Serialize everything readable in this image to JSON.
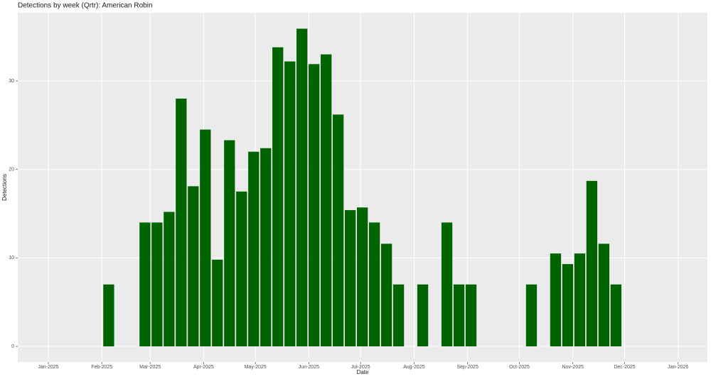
{
  "chart_data": {
    "type": "bar",
    "title": "Detections by week (Qrtr): American Robin",
    "x_label": "Date",
    "y_label": "Detections",
    "x": [
      35,
      56,
      63,
      70,
      77,
      84,
      91,
      98,
      105,
      112,
      119,
      126,
      133,
      140,
      147,
      154,
      161,
      168,
      175,
      182,
      189,
      196,
      203,
      217,
      231,
      238,
      245,
      280,
      294,
      301,
      308,
      315,
      322,
      329
    ],
    "values": [
      7,
      14,
      14,
      15.2,
      28,
      18.1,
      24.5,
      9.8,
      23.3,
      17.5,
      22,
      22.4,
      33.8,
      32.2,
      35.9,
      31.9,
      33,
      26.2,
      15.4,
      15.7,
      14,
      11.6,
      7,
      7,
      14,
      7,
      7,
      7,
      10.5,
      9.3,
      10.5,
      18.7,
      11.6,
      7
    ],
    "color": "#006400",
    "xlim": [
      -17.7,
      382
    ],
    "xticks": [
      {
        "value": 0,
        "label": "Jan-2025"
      },
      {
        "value": 31,
        "label": "Feb-2025"
      },
      {
        "value": 59,
        "label": "Mar-2025"
      },
      {
        "value": 90,
        "label": "Apr-2025"
      },
      {
        "value": 120,
        "label": "May-2025"
      },
      {
        "value": 151,
        "label": "Jun-2025"
      },
      {
        "value": 181,
        "label": "Jul-2025"
      },
      {
        "value": 212,
        "label": "Aug-2025"
      },
      {
        "value": 243,
        "label": "Sep-2025"
      },
      {
        "value": 273,
        "label": "Oct-2025"
      },
      {
        "value": 304,
        "label": "Nov-2025"
      },
      {
        "value": 334,
        "label": "Dec-2025"
      },
      {
        "value": 365,
        "label": "Jan-2026"
      }
    ],
    "ylim": [
      -1.76,
      37.7
    ],
    "yticks": [
      0,
      10,
      20,
      30
    ],
    "grid": true
  }
}
